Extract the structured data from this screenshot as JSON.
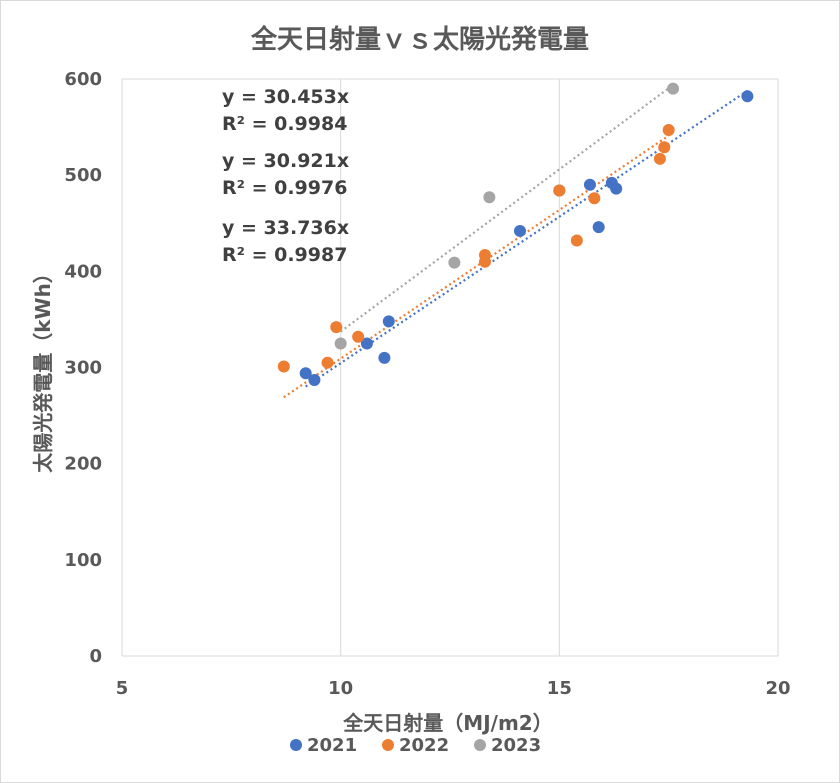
{
  "chart_data": {
    "type": "scatter",
    "title": "全天日射量ｖｓ太陽光発電量",
    "xlabel": "全天日射量（MJ/m2）",
    "ylabel": "太陽光発電量（kWh）",
    "xlim": [
      5,
      20
    ],
    "ylim": [
      0,
      600
    ],
    "xticks": [
      5,
      10,
      15,
      20
    ],
    "yticks": [
      0,
      100,
      200,
      300,
      400,
      500,
      600
    ],
    "grid": "vertical",
    "legend_position": "bottom",
    "series": [
      {
        "name": "2021",
        "color": "#4472C4",
        "points": [
          [
            9.2,
            294
          ],
          [
            9.4,
            287
          ],
          [
            10.6,
            325
          ],
          [
            11.0,
            310
          ],
          [
            11.1,
            348
          ],
          [
            14.1,
            442
          ],
          [
            15.0,
            484
          ],
          [
            15.7,
            490
          ],
          [
            15.9,
            446
          ],
          [
            16.2,
            492
          ],
          [
            16.3,
            486
          ],
          [
            19.3,
            582
          ]
        ],
        "trendline": {
          "slope": 30.453,
          "x_range": [
            9.2,
            19.3
          ]
        }
      },
      {
        "name": "2022",
        "color": "#ED7D31",
        "points": [
          [
            8.7,
            301
          ],
          [
            9.7,
            305
          ],
          [
            9.9,
            342
          ],
          [
            10.4,
            332
          ],
          [
            13.3,
            417
          ],
          [
            13.3,
            410
          ],
          [
            15.0,
            484
          ],
          [
            15.4,
            432
          ],
          [
            15.8,
            476
          ],
          [
            17.3,
            517
          ],
          [
            17.4,
            529
          ],
          [
            17.5,
            547
          ]
        ],
        "trendline": {
          "slope": 30.921,
          "x_range": [
            8.7,
            17.5
          ]
        }
      },
      {
        "name": "2023",
        "color": "#A5A5A5",
        "points": [
          [
            10.0,
            325
          ],
          [
            12.6,
            409
          ],
          [
            13.4,
            477
          ],
          [
            17.6,
            590
          ]
        ],
        "trendline": {
          "slope": 33.736,
          "x_range": [
            10.0,
            17.6
          ]
        }
      }
    ],
    "annotations": [
      {
        "equation": "y = 30.453x",
        "r2": "R² = 0.9984"
      },
      {
        "equation": "y = 30.921x",
        "r2": "R² = 0.9976"
      },
      {
        "equation": "y = 33.736x",
        "r2": "R² = 0.9987"
      }
    ]
  }
}
